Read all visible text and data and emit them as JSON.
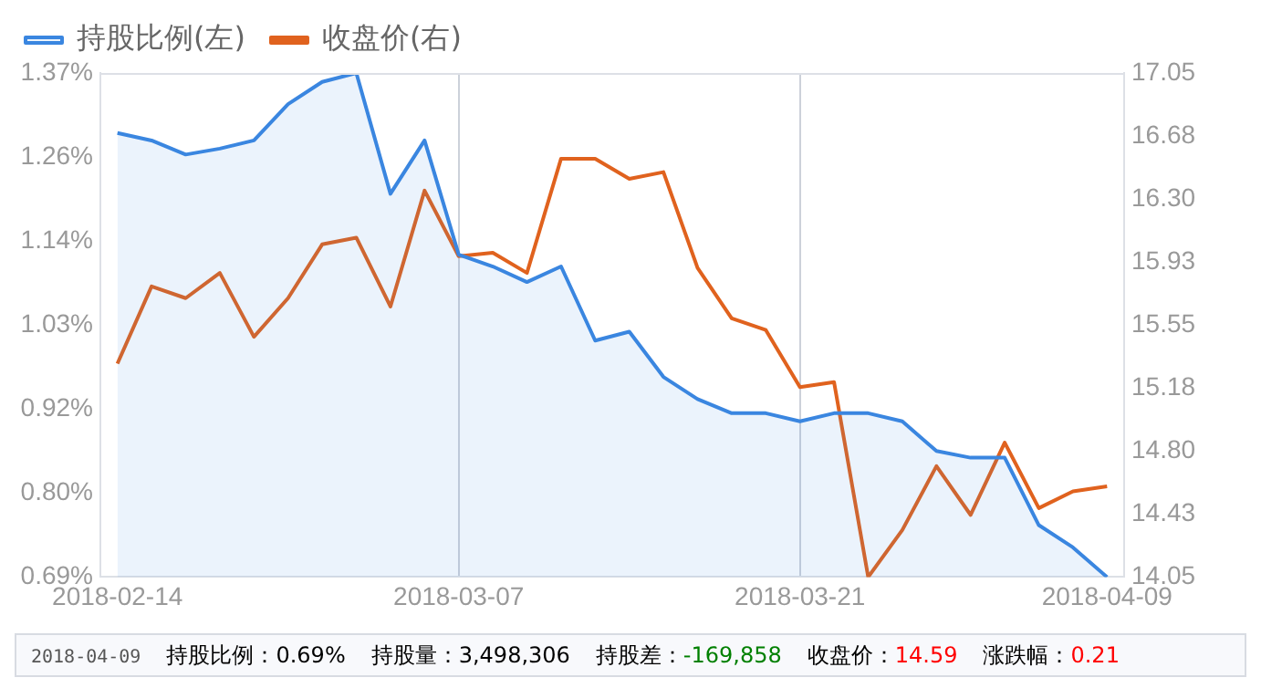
{
  "chart_data": {
    "type": "line",
    "categories": [
      "2018-02-14",
      null,
      null,
      null,
      null,
      null,
      null,
      null,
      null,
      null,
      "2018-03-07",
      null,
      null,
      null,
      null,
      null,
      null,
      null,
      null,
      null,
      "2018-03-21",
      null,
      null,
      null,
      null,
      null,
      null,
      null,
      null,
      "2018-04-09"
    ],
    "series": [
      {
        "name": "持股比例(左)",
        "type": "area",
        "axis": "y",
        "color": "#3a86e0",
        "values": [
          1.289,
          1.279,
          1.26,
          1.268,
          1.279,
          1.328,
          1.358,
          1.37,
          1.207,
          1.279,
          1.125,
          1.109,
          1.088,
          1.109,
          1.009,
          1.021,
          0.96,
          0.93,
          0.911,
          0.911,
          0.9,
          0.911,
          0.911,
          0.9,
          0.86,
          0.851,
          0.851,
          0.76,
          0.73,
          0.69
        ]
      },
      {
        "name": "收盘价(右)",
        "axis": "y2",
        "color": "#e0621e",
        "values": [
          15.32,
          15.78,
          15.71,
          15.86,
          15.48,
          15.71,
          16.03,
          16.07,
          15.66,
          16.35,
          15.96,
          15.98,
          15.86,
          16.54,
          16.54,
          16.42,
          16.46,
          15.89,
          15.59,
          15.52,
          15.18,
          15.21,
          14.05,
          14.33,
          14.71,
          14.42,
          14.85,
          14.46,
          14.56,
          14.59
        ]
      }
    ],
    "ylim": [
      0.69,
      1.37
    ],
    "yticks": [
      {
        "value": 0.69,
        "label": "0.69%"
      },
      {
        "value": 0.8033,
        "label": "0.80%"
      },
      {
        "value": 0.9167,
        "label": "0.92%"
      },
      {
        "value": 1.03,
        "label": "1.03%"
      },
      {
        "value": 1.1433,
        "label": "1.14%"
      },
      {
        "value": 1.2567,
        "label": "1.26%"
      },
      {
        "value": 1.37,
        "label": "1.37%"
      }
    ],
    "y2lim": [
      14.05,
      17.05
    ],
    "y2ticks": [
      14.05,
      {
        "value": 14.425,
        "label": "14.43"
      },
      {
        "value": 14.8,
        "label": "14.80"
      },
      {
        "value": 15.175,
        "label": "15.18"
      },
      15.55,
      {
        "value": 15.925,
        "label": "15.93"
      },
      {
        "value": 16.3,
        "label": "16.30"
      },
      {
        "value": 16.675,
        "label": "16.68"
      },
      17.05
    ],
    "annotations": [
      "2018-04-09",
      "持股比例：",
      "0.69%",
      "持股量：",
      "3,498,306",
      "持股差：",
      "-169,858",
      "收盘价：",
      "14.59",
      "涨跌幅：",
      "0.21"
    ],
    "grid": "x",
    "legend": "top",
    "marker": "none",
    "line_style": "solid"
  }
}
